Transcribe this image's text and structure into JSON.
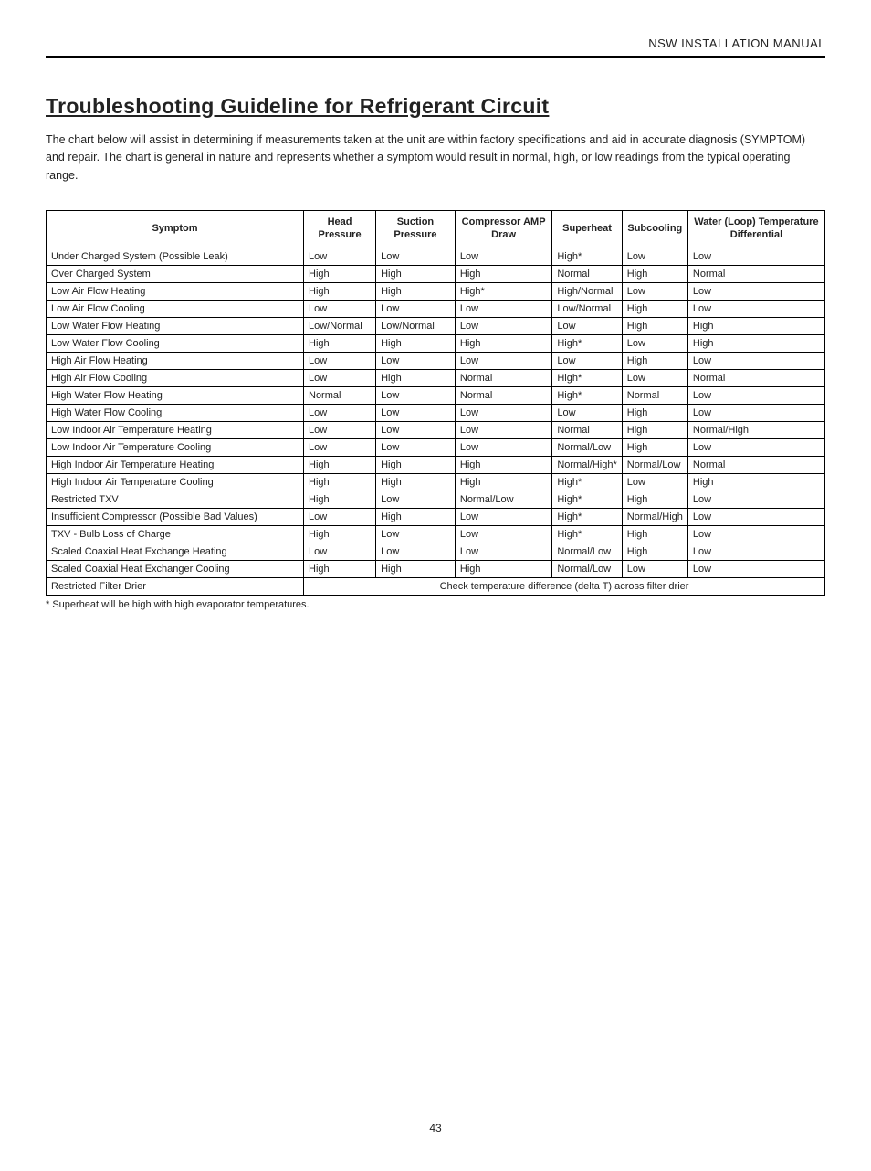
{
  "header": {
    "manual_title": "NSW INSTALLATION MANUAL"
  },
  "title": "Troubleshooting Guideline for Refrigerant Circuit",
  "intro": "The chart below will assist in determining if measurements taken at the unit are within factory specifications and aid in accurate diagnosis (SYMPTOM) and repair. The chart is general in nature and represents whether a symptom would result in normal, high, or low readings from the typical operating range.",
  "table": {
    "columns": [
      "Symptom",
      "Head Pressure",
      "Suction Pressure",
      "Compressor AMP Draw",
      "Superheat",
      "Subcooling",
      "Water (Loop) Temperature Differential"
    ],
    "rows": [
      {
        "cells": [
          "Under Charged System (Possible Leak)",
          "Low",
          "Low",
          "Low",
          "High*",
          "Low",
          "Low"
        ]
      },
      {
        "cells": [
          "Over Charged System",
          "High",
          "High",
          "High",
          "Normal",
          "High",
          "Normal"
        ]
      },
      {
        "cells": [
          "Low Air Flow Heating",
          "High",
          "High",
          "High*",
          "High/Normal",
          "Low",
          "Low"
        ]
      },
      {
        "cells": [
          "Low Air Flow Cooling",
          "Low",
          "Low",
          "Low",
          "Low/Normal",
          "High",
          "Low"
        ]
      },
      {
        "cells": [
          "Low Water Flow Heating",
          "Low/Normal",
          "Low/Normal",
          "Low",
          "Low",
          "High",
          "High"
        ]
      },
      {
        "cells": [
          "Low Water Flow Cooling",
          "High",
          "High",
          "High",
          "High*",
          "Low",
          "High"
        ]
      },
      {
        "cells": [
          "High Air Flow Heating",
          "Low",
          "Low",
          "Low",
          "Low",
          "High",
          "Low"
        ]
      },
      {
        "cells": [
          "High Air Flow Cooling",
          "Low",
          "High",
          "Normal",
          "High*",
          "Low",
          "Normal"
        ]
      },
      {
        "cells": [
          "High Water Flow Heating",
          "Normal",
          "Low",
          "Normal",
          "High*",
          "Normal",
          "Low"
        ]
      },
      {
        "cells": [
          "High Water Flow Cooling",
          "Low",
          "Low",
          "Low",
          "Low",
          "High",
          "Low"
        ]
      },
      {
        "cells": [
          "Low Indoor Air Temperature Heating",
          "Low",
          "Low",
          "Low",
          "Normal",
          "High",
          "Normal/High"
        ]
      },
      {
        "cells": [
          "Low Indoor Air Temperature Cooling",
          "Low",
          "Low",
          "Low",
          "Normal/Low",
          "High",
          "Low"
        ]
      },
      {
        "cells": [
          "High Indoor Air Temperature Heating",
          "High",
          "High",
          "High",
          "Normal/High*",
          "Normal/Low",
          "Normal"
        ]
      },
      {
        "cells": [
          "High Indoor Air Temperature Cooling",
          "High",
          "High",
          "High",
          "High*",
          "Low",
          "High"
        ]
      },
      {
        "cells": [
          "Restricted TXV",
          "High",
          "Low",
          "Normal/Low",
          "High*",
          "High",
          "Low"
        ]
      },
      {
        "cells": [
          "Insufficient Compressor (Possible Bad Values)",
          "Low",
          "High",
          "Low",
          "High*",
          "Normal/High",
          "Low"
        ]
      },
      {
        "cells": [
          "TXV - Bulb Loss of Charge",
          "High",
          "Low",
          "Low",
          "High*",
          "High",
          "Low"
        ]
      },
      {
        "cells": [
          "Scaled Coaxial Heat Exchange Heating",
          "Low",
          "Low",
          "Low",
          "Normal/Low",
          "High",
          "Low"
        ]
      },
      {
        "cells": [
          "Scaled Coaxial Heat Exchanger Cooling",
          "High",
          "High",
          "High",
          "Normal/Low",
          "Low",
          "Low"
        ]
      },
      {
        "cells": [
          "Restricted Filter Drier"
        ],
        "merged": "Check temperature difference (delta T) across filter drier"
      }
    ]
  },
  "footnote": "* Superheat will be high with high evaporator temperatures.",
  "page_number": "43"
}
